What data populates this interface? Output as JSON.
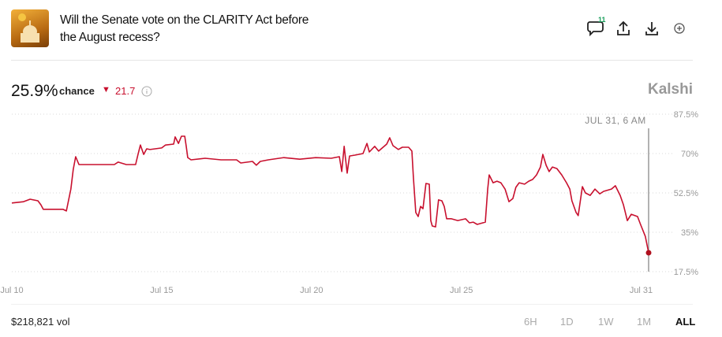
{
  "header": {
    "title": "Will the Senate vote on the CLARITY Act before the August recess?",
    "comment_count": "11"
  },
  "summary": {
    "chance_value": "25.9%",
    "chance_label": "chance",
    "change": "21.7",
    "brand": "Kalshi"
  },
  "footer": {
    "volume": "$218,821 vol",
    "ranges": [
      "6H",
      "1D",
      "1W",
      "1M",
      "ALL"
    ]
  },
  "chart_data": {
    "type": "line",
    "color": "#c8102e",
    "grid": true,
    "annotation": "JUL 31, 6 AM",
    "x": [
      10.0,
      10.39,
      10.61,
      10.87,
      10.97,
      11.05,
      11.71,
      11.82,
      11.97,
      12.05,
      12.13,
      12.24,
      13.42,
      13.55,
      13.82,
      14.13,
      14.21,
      14.29,
      14.4,
      14.5,
      14.61,
      15.0,
      15.13,
      15.4,
      15.45,
      15.56,
      15.66,
      15.77,
      15.82,
      15.87,
      15.98,
      16.45,
      16.98,
      17.5,
      17.64,
      18.03,
      18.16,
      18.29,
      18.56,
      19.08,
      19.61,
      20.14,
      20.66,
      20.93,
      21.01,
      21.09,
      21.19,
      21.27,
      21.45,
      21.72,
      21.85,
      21.93,
      22.11,
      22.24,
      22.51,
      22.61,
      22.72,
      22.9,
      23.03,
      23.24,
      23.35,
      23.4,
      23.48,
      23.56,
      23.64,
      23.72,
      23.82,
      23.93,
      23.98,
      24.03,
      24.14,
      24.24,
      24.35,
      24.43,
      24.51,
      24.67,
      24.88,
      25.14,
      25.27,
      25.4,
      25.53,
      25.8,
      25.88,
      25.93,
      26.06,
      26.19,
      26.32,
      26.46,
      26.59,
      26.72,
      26.82,
      26.93,
      27.11,
      27.25,
      27.38,
      27.51,
      27.64,
      27.72,
      27.83,
      27.93,
      28.04,
      28.19,
      28.35,
      28.51,
      28.62,
      28.69,
      28.83,
      28.9,
      29.04,
      29.14,
      29.3,
      29.46,
      29.62,
      29.75,
      30.01,
      30.14,
      30.3,
      30.41,
      30.54,
      30.67,
      30.88,
      30.98,
      31.14,
      31.25
    ],
    "values": [
      48.0,
      48.6,
      49.7,
      49.0,
      47.2,
      45.2,
      45.2,
      44.5,
      54.2,
      63.0,
      68.6,
      65.1,
      65.1,
      66.2,
      65.1,
      65.1,
      69.6,
      73.8,
      69.6,
      72.1,
      71.8,
      72.5,
      73.8,
      74.2,
      77.4,
      74.5,
      77.7,
      77.7,
      73.2,
      68.2,
      67.2,
      67.9,
      67.2,
      67.2,
      65.8,
      66.5,
      64.8,
      66.5,
      67.2,
      68.2,
      67.5,
      68.2,
      67.9,
      68.6,
      62.0,
      73.2,
      61.3,
      68.9,
      69.3,
      70.0,
      74.5,
      70.7,
      73.2,
      71.1,
      74.2,
      77.0,
      73.5,
      71.8,
      72.8,
      72.8,
      71.1,
      59.5,
      43.8,
      42.0,
      46.5,
      45.5,
      56.7,
      56.4,
      40.2,
      37.8,
      37.4,
      49.4,
      49.0,
      46.5,
      41.0,
      41.0,
      40.2,
      41.0,
      39.2,
      39.5,
      38.5,
      39.5,
      54.2,
      60.5,
      57.0,
      57.7,
      57.0,
      54.2,
      48.6,
      50.0,
      55.0,
      57.0,
      56.4,
      57.7,
      58.5,
      60.5,
      64.0,
      69.6,
      64.8,
      62.0,
      64.0,
      63.3,
      60.5,
      57.0,
      54.2,
      49.0,
      43.8,
      42.4,
      55.3,
      52.5,
      51.4,
      54.2,
      52.1,
      53.2,
      54.2,
      55.7,
      51.4,
      47.2,
      40.2,
      43.0,
      42.0,
      38.5,
      33.2,
      25.9
    ],
    "xlim": [
      10,
      31.25
    ],
    "ylim": [
      17.5,
      87.5
    ],
    "xticks": [
      {
        "value": 10,
        "label": "Jul 10"
      },
      {
        "value": 15,
        "label": "Jul 15"
      },
      {
        "value": 20,
        "label": "Jul 20"
      },
      {
        "value": 25,
        "label": "Jul 25"
      },
      {
        "value": 31,
        "label": "Jul 31"
      }
    ],
    "yticks": [
      {
        "value": 17.5,
        "label": "17.5%"
      },
      {
        "value": 35,
        "label": "35%"
      },
      {
        "value": 52.5,
        "label": "52.5%"
      },
      {
        "value": 70,
        "label": "70%"
      },
      {
        "value": 87.5,
        "label": "87.5%"
      }
    ]
  }
}
